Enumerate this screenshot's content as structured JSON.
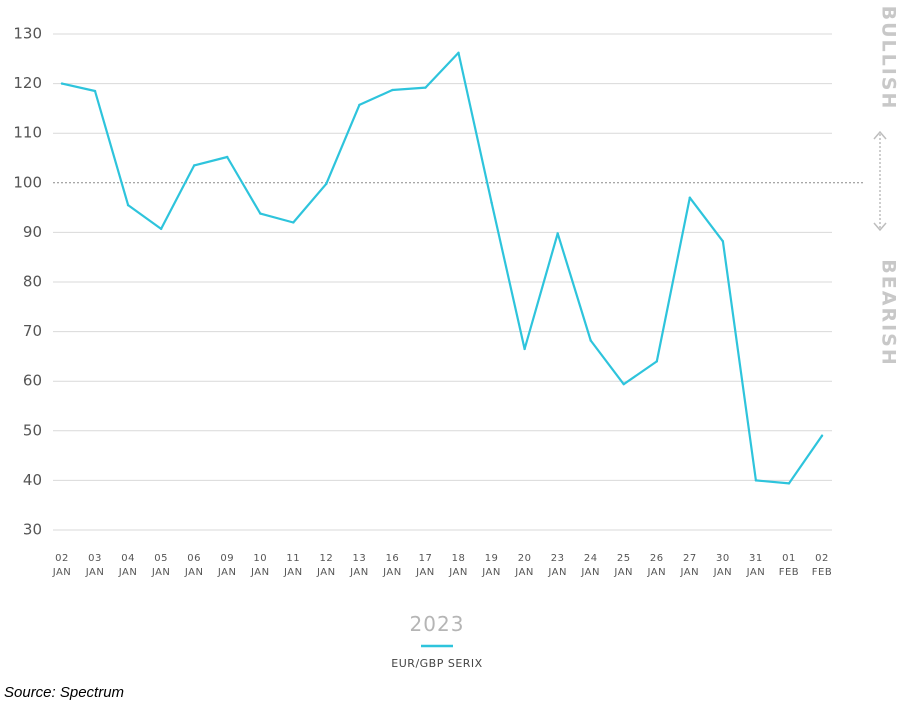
{
  "chart_data": {
    "type": "line",
    "x": [
      [
        "02",
        "JAN"
      ],
      [
        "03",
        "JAN"
      ],
      [
        "04",
        "JAN"
      ],
      [
        "05",
        "JAN"
      ],
      [
        "06",
        "JAN"
      ],
      [
        "09",
        "JAN"
      ],
      [
        "10",
        "JAN"
      ],
      [
        "11",
        "JAN"
      ],
      [
        "12",
        "JAN"
      ],
      [
        "13",
        "JAN"
      ],
      [
        "16",
        "JAN"
      ],
      [
        "17",
        "JAN"
      ],
      [
        "18",
        "JAN"
      ],
      [
        "19",
        "JAN"
      ],
      [
        "20",
        "JAN"
      ],
      [
        "23",
        "JAN"
      ],
      [
        "24",
        "JAN"
      ],
      [
        "25",
        "JAN"
      ],
      [
        "26",
        "JAN"
      ],
      [
        "27",
        "JAN"
      ],
      [
        "30",
        "JAN"
      ],
      [
        "31",
        "JAN"
      ],
      [
        "01",
        "FEB"
      ],
      [
        "02",
        "FEB"
      ]
    ],
    "series": [
      {
        "name": "EUR/GBP SERIX",
        "color": "#2ec4dc",
        "values": [
          120,
          118.5,
          95.5,
          90.7,
          103.5,
          105.2,
          93.8,
          92,
          99.8,
          115.7,
          118.7,
          119.2,
          126.2,
          96,
          66.5,
          89.8,
          68.2,
          59.4,
          64,
          97,
          88.2,
          40,
          39.4,
          49
        ]
      }
    ],
    "yticks": [
      130,
      120,
      110,
      100,
      90,
      80,
      70,
      60,
      50,
      40,
      30
    ],
    "ylim": [
      30,
      130
    ],
    "reference_line": 100,
    "grid": true,
    "side_labels": {
      "top": "BULLISH",
      "bottom": "BEARISH"
    },
    "xlabel": "2023",
    "legend_position": "bottom-center"
  },
  "source": "Source: Spectrum",
  "colors": {
    "line": "#2ec4dc",
    "grid": "#d9d9d9",
    "arrow": "#bdbdbd"
  }
}
